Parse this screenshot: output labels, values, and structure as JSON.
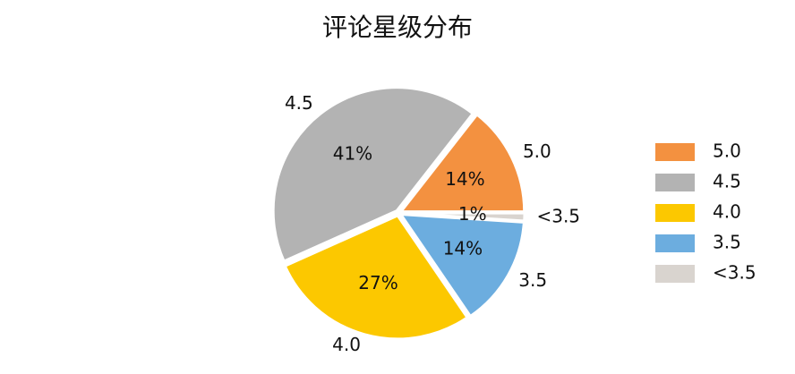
{
  "chart_data": {
    "type": "pie",
    "title": "评论星级分布",
    "categories": [
      "5.0",
      "4.5",
      "4.0",
      "3.5",
      "<3.5"
    ],
    "values": [
      14,
      41,
      27,
      14,
      1
    ],
    "value_labels": [
      "14%",
      "41%",
      "27%",
      "14%",
      "1%"
    ],
    "colors": [
      "#f39140",
      "#b3b3b3",
      "#fcc800",
      "#6caddf",
      "#d9d4cf"
    ],
    "legend": "right"
  }
}
